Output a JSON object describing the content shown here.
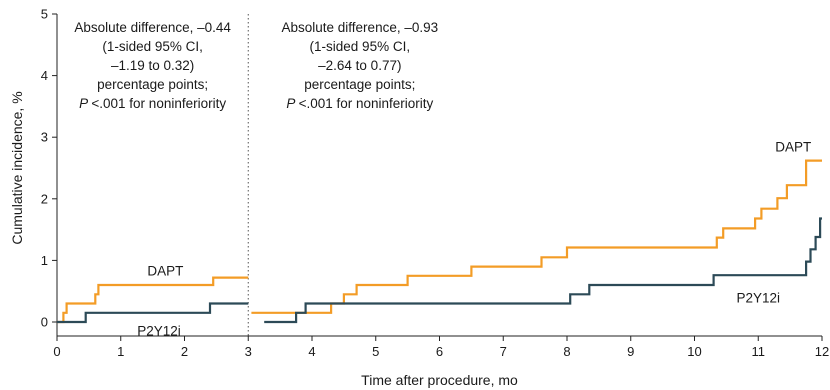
{
  "chart_data": {
    "type": "line",
    "xlabel": "Time after procedure, mo",
    "ylabel": "Cumulative incidence, %",
    "xlim": [
      0,
      12
    ],
    "ylim": [
      0,
      5
    ],
    "x_ticks": [
      0,
      1,
      2,
      3,
      4,
      5,
      6,
      7,
      8,
      9,
      10,
      11,
      12
    ],
    "y_ticks": [
      0,
      1,
      2,
      3,
      4,
      5
    ],
    "grid": false,
    "step": true,
    "landmark_x": 3,
    "series": [
      {
        "name": "DAPT",
        "color": "#f39c26",
        "segments": [
          {
            "x": [
              0,
              0.1,
              0.15,
              0.6,
              0.65,
              2.35,
              2.45,
              3
            ],
            "y": [
              0,
              0.15,
              0.3,
              0.45,
              0.6,
              0.6,
              0.72,
              0.72
            ]
          },
          {
            "x": [
              3.05,
              4.3,
              4.5,
              4.7,
              5.5,
              6.5,
              7.6,
              8.0,
              10.35,
              10.45,
              10.55,
              10.95,
              11.05,
              11.3,
              11.45,
              11.75,
              12
            ],
            "y": [
              0.15,
              0.3,
              0.45,
              0.6,
              0.75,
              0.9,
              1.05,
              1.21,
              1.37,
              1.52,
              1.52,
              1.68,
              1.84,
              2.01,
              2.22,
              2.62,
              2.62
            ]
          }
        ]
      },
      {
        "name": "P2Y12i",
        "color": "#2c4a57",
        "segments": [
          {
            "x": [
              0,
              0.45,
              2.4,
              3
            ],
            "y": [
              0,
              0.15,
              0.3,
              0.3
            ]
          },
          {
            "x": [
              3.25,
              3.75,
              3.9,
              8.05,
              8.35,
              10.3,
              11.75,
              11.82,
              11.9,
              11.97,
              12
            ],
            "y": [
              0,
              0.15,
              0.3,
              0.45,
              0.6,
              0.76,
              0.98,
              1.18,
              1.38,
              1.68,
              1.68
            ]
          }
        ]
      }
    ],
    "series_labels": {
      "DAPT": [
        {
          "x": 1.7,
          "y": 0.84
        },
        {
          "x": 11.55,
          "y": 2.85
        }
      ],
      "P2Y12i": [
        {
          "x": 1.6,
          "y": -0.14
        },
        {
          "x": 11.0,
          "y": 0.4
        }
      ]
    },
    "annotations": [
      {
        "lines": [
          "Absolute difference, –0.44",
          "(1-sided 95% CI,",
          "–1.19 to 0.32)",
          "percentage points;",
          "P <.001 for noninferiority"
        ],
        "center_x": 1.5
      },
      {
        "lines": [
          "Absolute difference, –0.93",
          "(1-sided 95% CI,",
          "–2.64 to 0.77)",
          "percentage points;",
          "P <.001 for noninferiority"
        ],
        "center_x": 4.75
      }
    ]
  }
}
